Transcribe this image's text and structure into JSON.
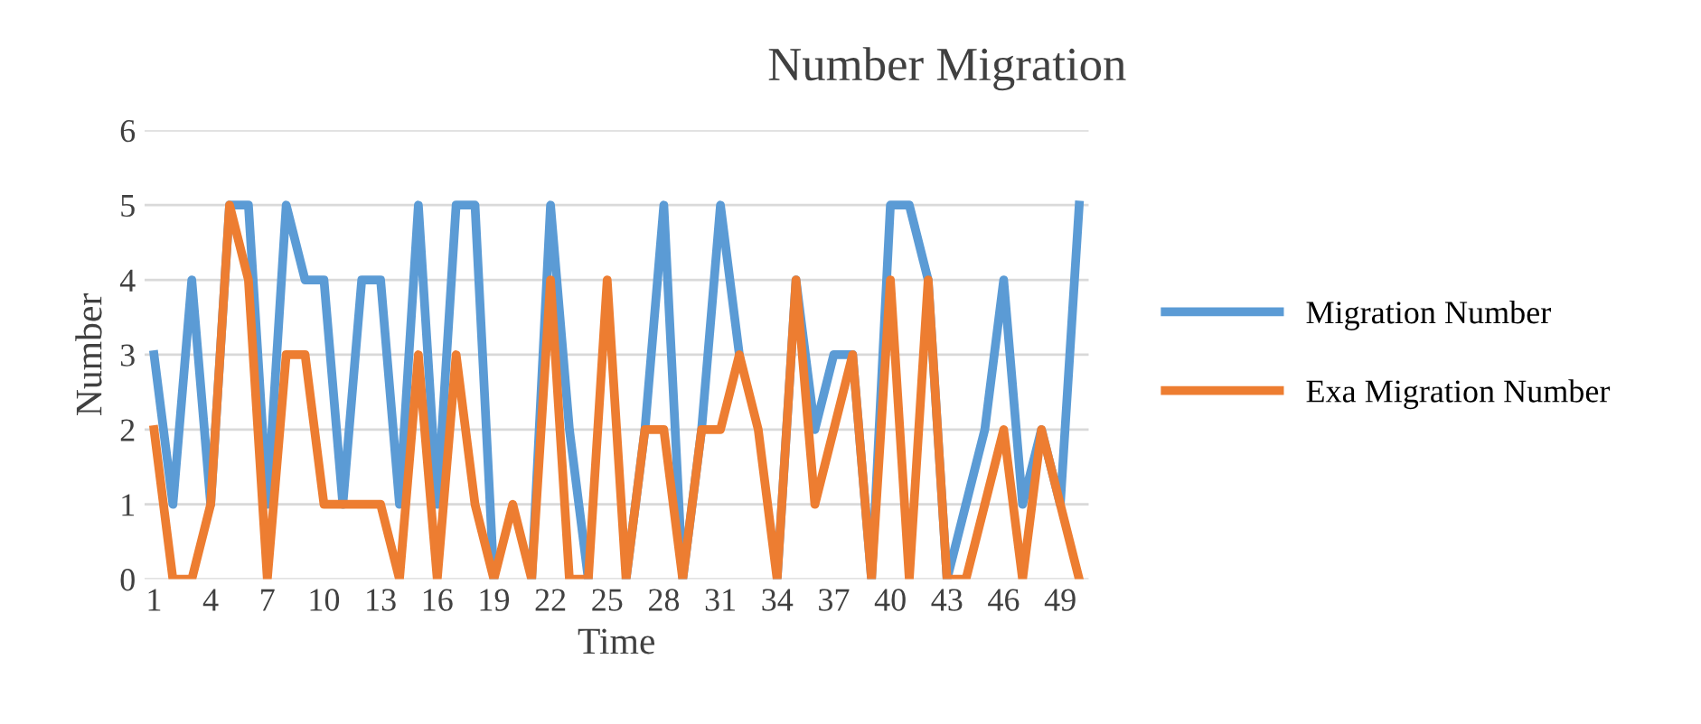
{
  "chart_data": {
    "type": "line",
    "title": "Number Migration",
    "xlabel": "Time",
    "ylabel": "Number",
    "categories": [
      "1",
      null,
      null,
      "4",
      null,
      null,
      "7",
      null,
      null,
      "10",
      null,
      null,
      "13",
      null,
      null,
      "16",
      null,
      null,
      "19",
      null,
      null,
      "22",
      null,
      null,
      "25",
      null,
      null,
      "28",
      null,
      null,
      "31",
      null,
      null,
      "34",
      null,
      null,
      "37",
      null,
      null,
      "40",
      null,
      null,
      "43",
      null,
      null,
      "46",
      null,
      null,
      "49",
      null
    ],
    "series": [
      {
        "name": "Migration Number",
        "color": "#5b9bd5",
        "values": [
          3,
          1,
          4,
          1,
          5,
          5,
          1,
          5,
          4,
          4,
          1,
          4,
          4,
          1,
          5,
          1,
          5,
          5,
          0,
          null,
          0,
          5,
          2,
          0,
          null,
          0,
          2,
          5,
          0,
          2,
          5,
          3,
          null,
          0,
          4,
          2,
          3,
          3,
          0,
          5,
          5,
          4,
          0,
          1,
          2,
          4,
          1,
          2,
          1,
          5
        ]
      },
      {
        "name": "Exa Migration Number",
        "color": "#ed7d31",
        "values": [
          2,
          0,
          0,
          1,
          5,
          4,
          0,
          3,
          3,
          1,
          1,
          1,
          1,
          0,
          3,
          0,
          3,
          1,
          0,
          1,
          0,
          4,
          0,
          0,
          4,
          0,
          2,
          2,
          0,
          2,
          2,
          3,
          2,
          0,
          4,
          1,
          2,
          3,
          0,
          4,
          0,
          4,
          0,
          0,
          1,
          2,
          0,
          2,
          1,
          0
        ]
      }
    ],
    "ylim": [
      0,
      6
    ],
    "yticks": [
      0,
      1,
      2,
      3,
      4,
      5,
      6
    ],
    "grid": "y",
    "legend": "right",
    "line_style": "solid",
    "marker": "none"
  }
}
